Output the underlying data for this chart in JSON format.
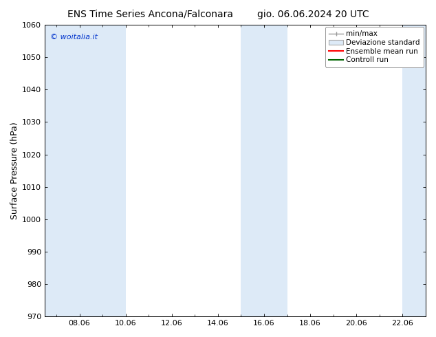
{
  "title_left": "ENS Time Series Ancona/Falconara",
  "title_right": "gio. 06.06.2024 20 UTC",
  "ylabel": "Surface Pressure (hPa)",
  "ylim": [
    970,
    1060
  ],
  "yticks": [
    970,
    980,
    990,
    1000,
    1010,
    1020,
    1030,
    1040,
    1050,
    1060
  ],
  "xtick_labels": [
    "08.06",
    "10.06",
    "12.06",
    "14.06",
    "16.06",
    "18.06",
    "20.06",
    "22.06"
  ],
  "xtick_positions": [
    36,
    84,
    132,
    180,
    228,
    276,
    324,
    372
  ],
  "xlim": [
    0,
    396
  ],
  "watermark": "© woitalia.it",
  "watermark_color": "#0033cc",
  "shaded_bands": [
    {
      "x_start": 0,
      "x_end": 84,
      "color": "#ddeaf7"
    },
    {
      "x_start": 204,
      "x_end": 252,
      "color": "#ddeaf7"
    },
    {
      "x_start": 372,
      "x_end": 396,
      "color": "#ddeaf7"
    }
  ],
  "legend_items": [
    {
      "label": "min/max",
      "type": "hline",
      "color": "#999999",
      "lw": 1.0
    },
    {
      "label": "Deviazione standard",
      "type": "box",
      "facecolor": "#ddeaf7",
      "edgecolor": "#aaaaaa"
    },
    {
      "label": "Ensemble mean run",
      "type": "line",
      "color": "#ff0000",
      "lw": 1.5
    },
    {
      "label": "Controll run",
      "type": "line",
      "color": "#006600",
      "lw": 1.5
    }
  ],
  "bg_color": "#ffffff",
  "plot_bg_color": "#ffffff",
  "title_fontsize": 10,
  "tick_fontsize": 8,
  "ylabel_fontsize": 9,
  "legend_fontsize": 7.5
}
